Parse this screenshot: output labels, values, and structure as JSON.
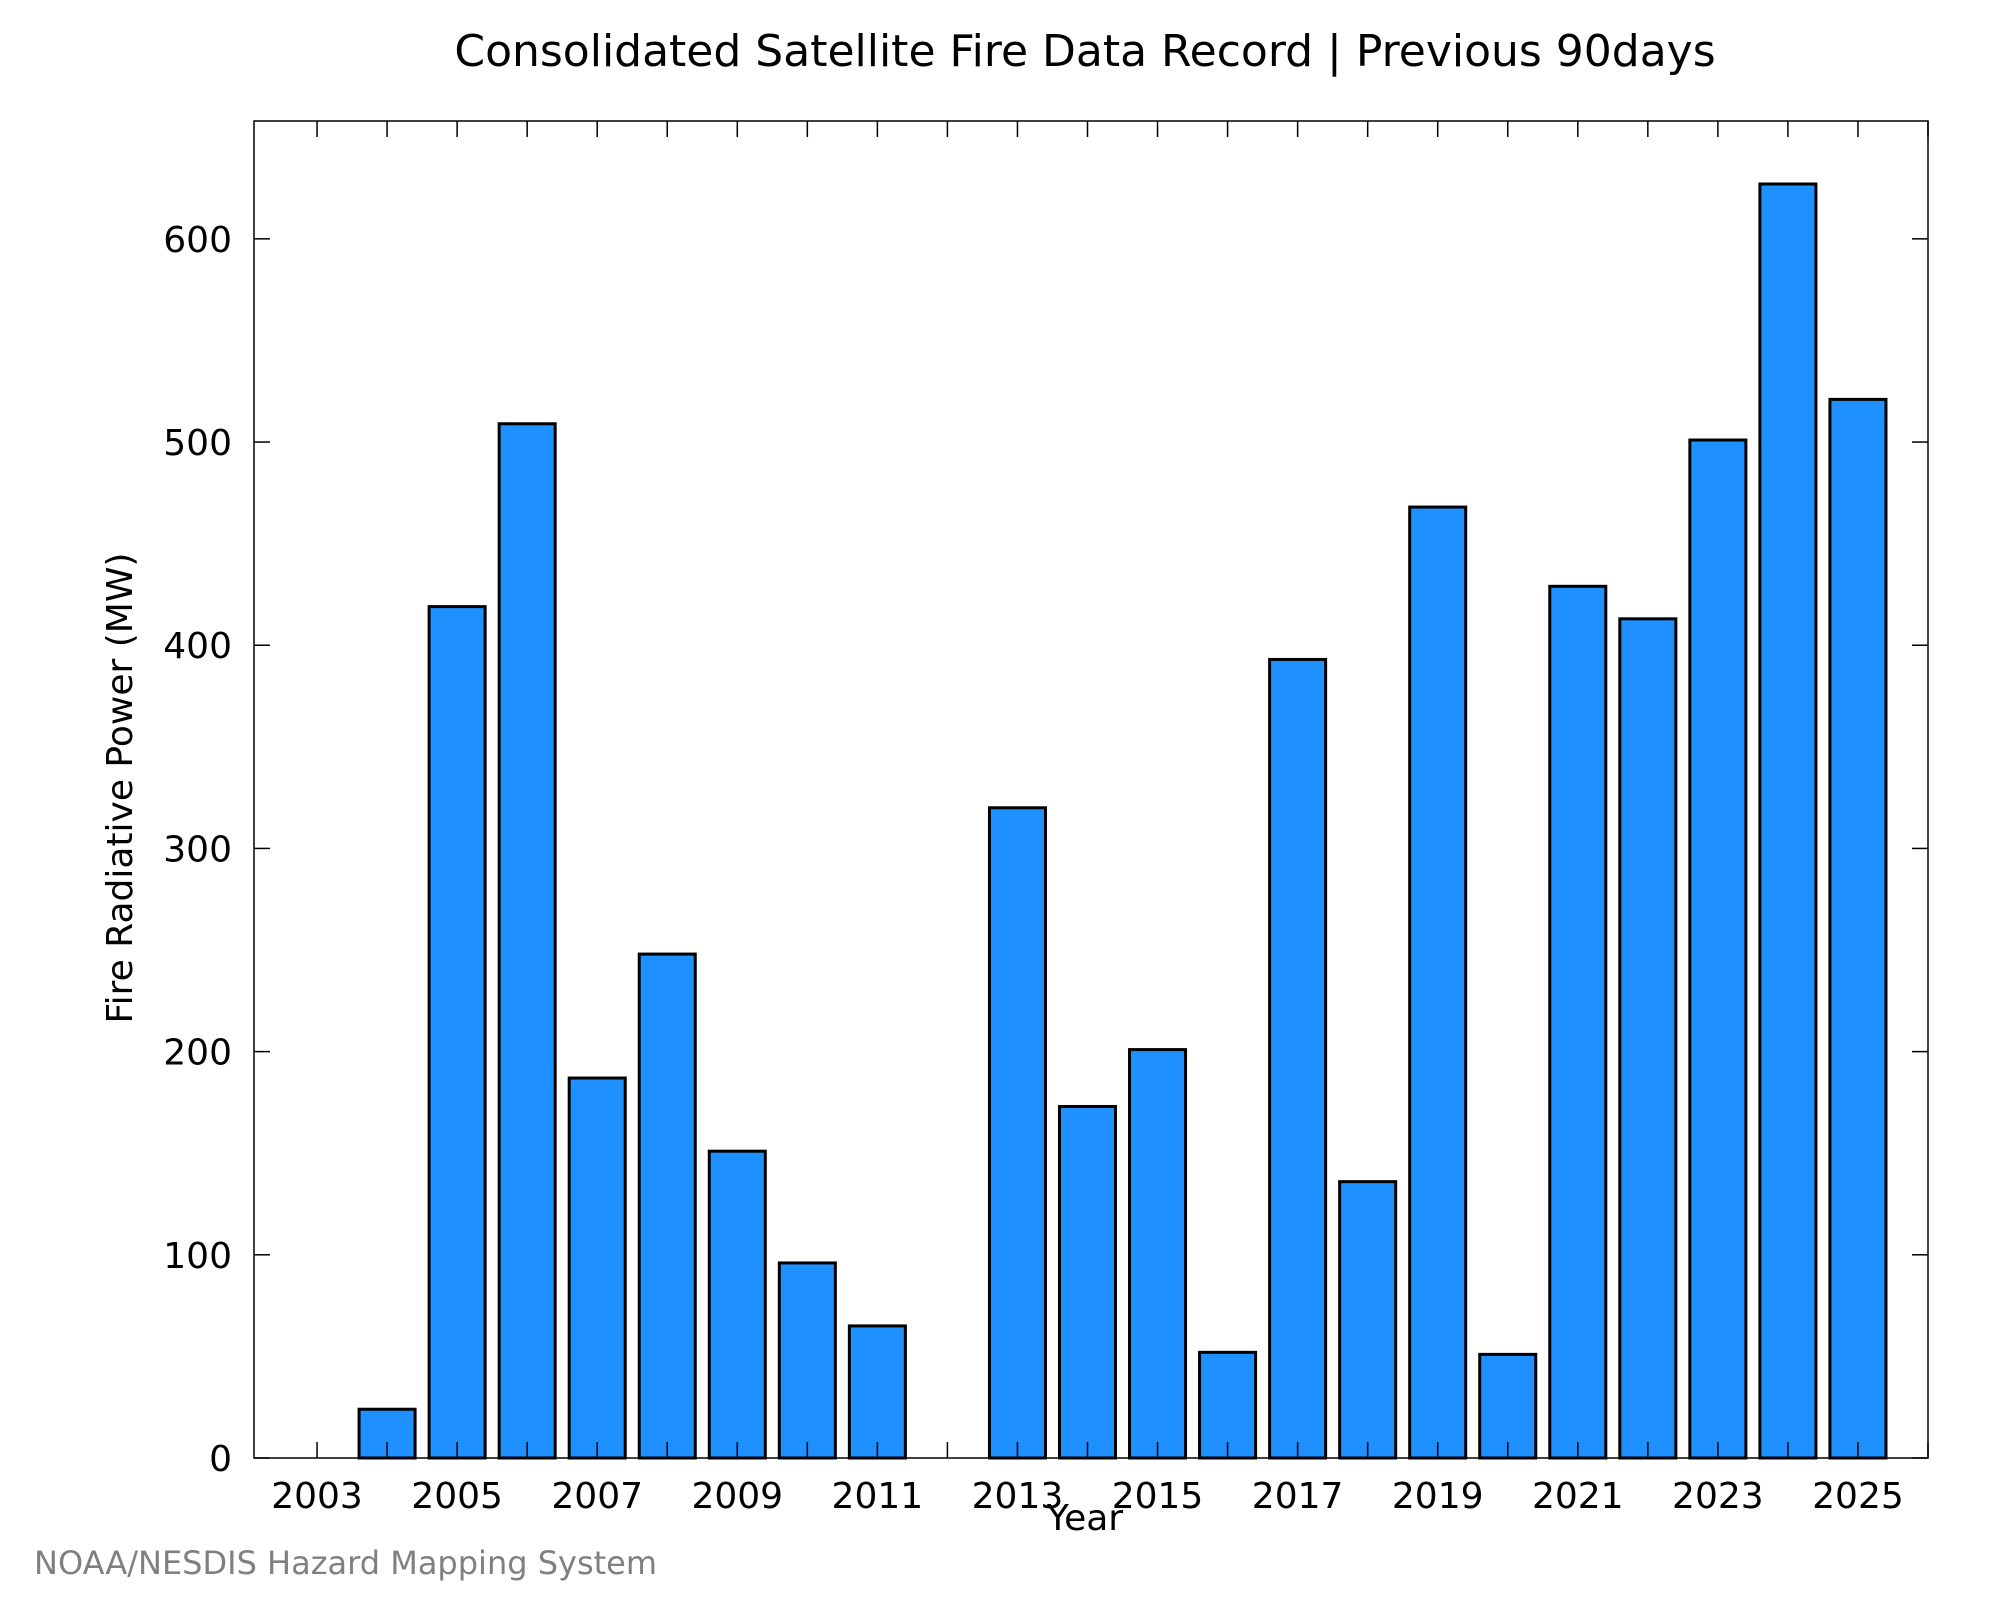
{
  "chart_data": {
    "type": "bar",
    "title": "Consolidated Satellite Fire Data Record | Previous 90days",
    "xlabel": "Year",
    "ylabel": "Fire Radiative Power (MW)",
    "ylim": [
      0,
      658
    ],
    "xlim": [
      2002.1,
      2026
    ],
    "yticks": [
      0,
      100,
      200,
      300,
      400,
      500,
      600
    ],
    "xtick_labels": [
      "2003",
      "2005",
      "2007",
      "2009",
      "2011",
      "2013",
      "2015",
      "2017",
      "2019",
      "2021",
      "2023",
      "2025"
    ],
    "grid": false,
    "bar_color": "#1e90ff",
    "x": [
      2003,
      2004,
      2005,
      2006,
      2007,
      2008,
      2009,
      2010,
      2011,
      2012,
      2013,
      2014,
      2015,
      2016,
      2017,
      2018,
      2019,
      2020,
      2021,
      2022,
      2023,
      2024,
      2025
    ],
    "values": [
      0,
      24,
      419,
      509,
      187,
      248,
      151,
      96,
      65,
      0,
      320,
      173,
      201,
      52,
      393,
      136,
      468,
      51,
      429,
      413,
      501,
      627,
      521
    ]
  },
  "credit": "NOAA/NESDIS Hazard Mapping System"
}
